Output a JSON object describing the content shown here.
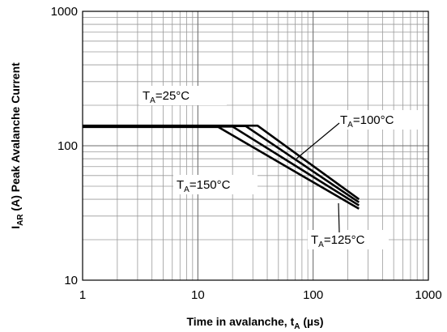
{
  "chart_data": {
    "type": "line",
    "x_scale": "log",
    "y_scale": "log",
    "xlim": [
      1,
      1000
    ],
    "ylim": [
      10,
      1000
    ],
    "grid": true,
    "x_ticks": [
      "1",
      "10",
      "100",
      "1000"
    ],
    "y_ticks": [
      "10",
      "100",
      "1000"
    ],
    "xlabel": {
      "main": "Time in avalanche, t",
      "sub": "A",
      "unit": " (µs)"
    },
    "ylabel": {
      "main": "I",
      "sub": "AR",
      "rest": " (A) Peak Avalanche Current"
    },
    "series": [
      {
        "x": [
          1,
          15,
          250
        ],
        "y": [
          138,
          138,
          34
        ]
      },
      {
        "x": [
          1,
          20,
          250
        ],
        "y": [
          139,
          139,
          36
        ]
      },
      {
        "x": [
          1,
          26,
          250
        ],
        "y": [
          140,
          140,
          38
        ]
      },
      {
        "x": [
          1,
          33,
          250
        ],
        "y": [
          141,
          141,
          40
        ]
      }
    ],
    "annotations": [
      {
        "main": "T",
        "sub": "A",
        "rest": "=25°C"
      },
      {
        "main": "T",
        "sub": "A",
        "rest": "=100°C"
      },
      {
        "main": "T",
        "sub": "A",
        "rest": "=150°C"
      },
      {
        "main": "T",
        "sub": "A",
        "rest": "=125°C"
      }
    ]
  }
}
